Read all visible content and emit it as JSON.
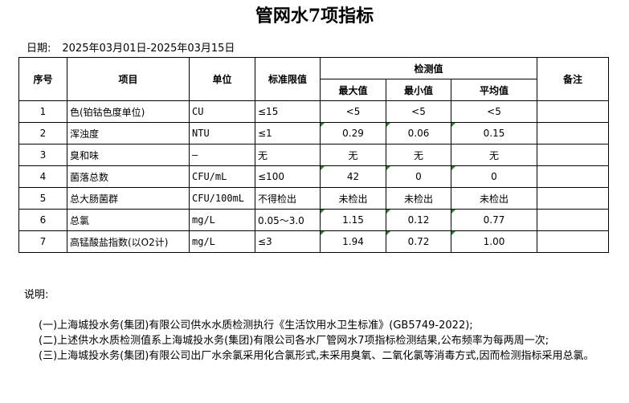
{
  "title": "管网水7项指标",
  "date": {
    "label": "日期:",
    "value": "2025年03月01日-2025年03月15日"
  },
  "headers": {
    "no": "序号",
    "item": "项目",
    "unit": "单位",
    "limit": "标准限值",
    "measured": "检测值",
    "max": "最大值",
    "min": "最小值",
    "avg": "平均值",
    "remark": "备注"
  },
  "rows": [
    {
      "no": "1",
      "item": "色(铂钴色度单位)",
      "unit": "CU",
      "limit": "≤15",
      "max": "<5",
      "min": "<5",
      "avg": "<5"
    },
    {
      "no": "2",
      "item": "浑浊度",
      "unit": "NTU",
      "limit": "≤1",
      "max": "0.29",
      "min": "0.06",
      "avg": "0.15"
    },
    {
      "no": "3",
      "item": "臭和味",
      "unit": "—",
      "limit": "无",
      "max": "无",
      "min": "无",
      "avg": "无"
    },
    {
      "no": "4",
      "item": "菌落总数",
      "unit": "CFU/mL",
      "limit": "≤100",
      "max": "42",
      "min": "0",
      "avg": "0"
    },
    {
      "no": "5",
      "item": "总大肠菌群",
      "unit": "CFU/100mL",
      "limit": "不得检出",
      "max": "未检出",
      "min": "未检出",
      "avg": "未检出"
    },
    {
      "no": "6",
      "item": "总氯",
      "unit": "mg/L",
      "limit": "0.05～3.0",
      "max": "1.15",
      "min": "0.12",
      "avg": "0.77"
    },
    {
      "no": "7",
      "item": "高锰酸盐指数(以O2计)",
      "unit": "mg/L",
      "limit": "≤3",
      "max": "1.94",
      "min": "0.72",
      "avg": "1.00"
    }
  ],
  "notes": {
    "heading": "说明:",
    "lines": [
      "(一)上海城投水务(集团)有限公司供水水质检测执行《生活饮用水卫生标准》(GB5749-2022);",
      "(二)上述供水水质检测值系上海城投水务(集团)有限公司各水厂管网水7项指标检测结果,公布频率为每两周一次;",
      "(三)上海城投水务(集团)有限公司出厂水余氯采用化合氯形式,未采用臭氧、二氧化氯等消毒方式,因而检测指标采用总氯。"
    ]
  }
}
